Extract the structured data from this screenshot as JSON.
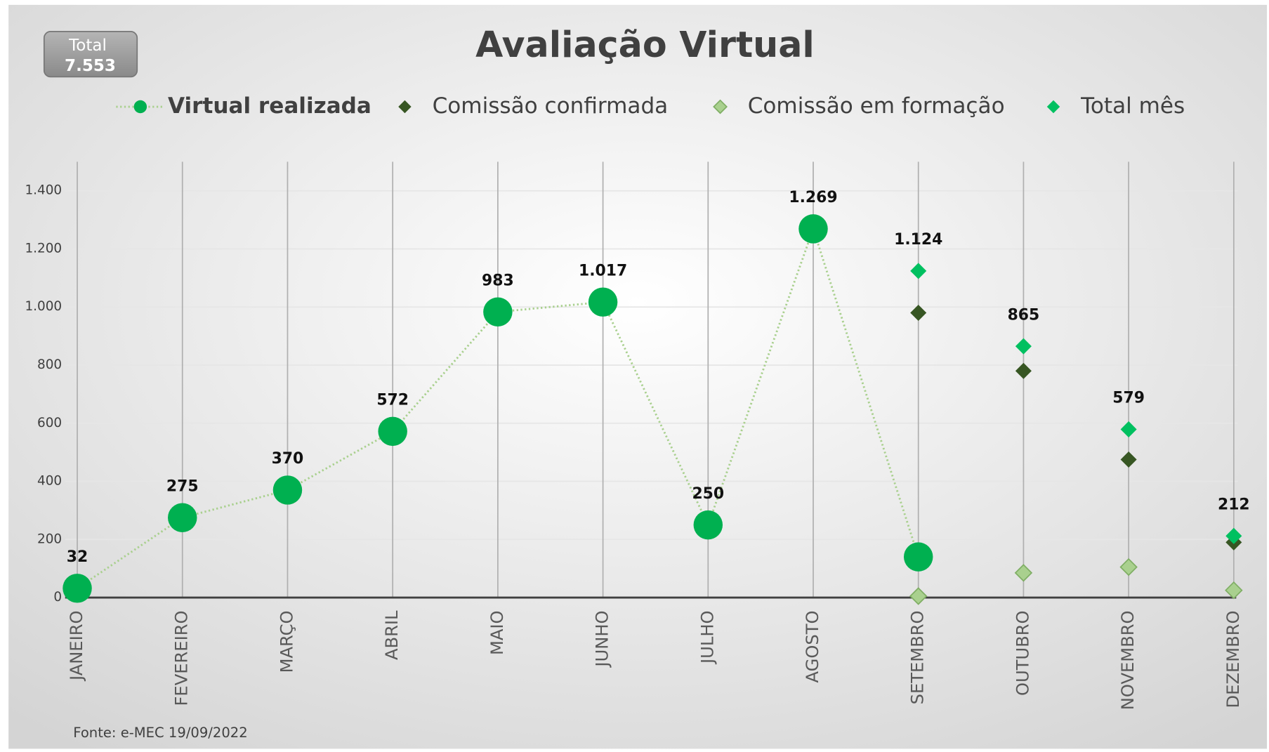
{
  "chart_data": {
    "type": "line",
    "title": "Avaliação Virtual",
    "total_box": {
      "label": "Total",
      "value": "7.553"
    },
    "source": "Fonte: e-MEC 19/09/2022",
    "categories": [
      "JANEIRO",
      "FEVEREIRO",
      "MARÇO",
      "ABRIL",
      "MAIO",
      "JUNHO",
      "JULHO",
      "AGOSTO",
      "SETEMBRO",
      "OUTUBRO",
      "NOVEMBRO",
      "DEZEMBRO"
    ],
    "series": [
      {
        "name": "Virtual realizada",
        "color": "#00b050",
        "marker": "circle",
        "line": true,
        "values": [
          32,
          275,
          370,
          572,
          983,
          1017,
          250,
          1269,
          140,
          null,
          null,
          null
        ],
        "value_labels": [
          "32",
          "275",
          "370",
          "572",
          "983",
          "1.017",
          "250",
          "1.269",
          null,
          null,
          null,
          null
        ]
      },
      {
        "name": "Comissão confirmada",
        "color": "#375623",
        "marker": "diamond",
        "line": false,
        "values": [
          null,
          null,
          null,
          null,
          null,
          null,
          null,
          null,
          980,
          780,
          475,
          190
        ]
      },
      {
        "name": "Comissão em formação",
        "color": "#a9d08e",
        "marker": "diamond",
        "line": false,
        "values": [
          null,
          null,
          null,
          null,
          null,
          null,
          null,
          null,
          5,
          85,
          105,
          25
        ]
      },
      {
        "name": "Total mês",
        "color": "#00c060",
        "marker": "diamond",
        "line": false,
        "values": [
          null,
          null,
          null,
          null,
          null,
          null,
          null,
          null,
          1124,
          865,
          579,
          212
        ],
        "value_labels": [
          null,
          null,
          null,
          null,
          null,
          null,
          null,
          null,
          "1.124",
          "865",
          "579",
          "212"
        ]
      }
    ],
    "ylim": [
      0,
      1500
    ],
    "yticks": [
      0,
      200,
      400,
      600,
      800,
      {
        "value": 1000,
        "label": "1.000"
      },
      {
        "value": 1200,
        "label": "1.200"
      },
      {
        "value": 1400,
        "label": "1.400"
      }
    ],
    "grid": true,
    "legend": "top"
  }
}
